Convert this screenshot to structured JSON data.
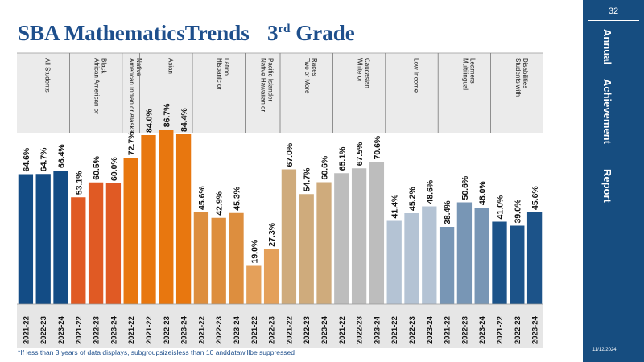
{
  "slide": {
    "title_main": "SBA MathematicsTrends",
    "title_grade_num": "3",
    "title_grade_sup": "rd",
    "title_grade_word": "Grade",
    "footnote": "*If less than 3 years of data displays, subgroupsizeisless than 10 anddatawillbe suppressed"
  },
  "sidebar": {
    "page_number": "32",
    "words": [
      "Annual",
      "Achievement",
      "Report"
    ],
    "date": "11/12/2024"
  },
  "chart_data": {
    "type": "bar",
    "ylim": [
      0,
      100
    ],
    "groups": [
      {
        "name": "All Students",
        "color": "#134c85",
        "bars": [
          {
            "year": "2021-22",
            "value": 64.6
          },
          {
            "year": "2022-23",
            "value": 64.7
          },
          {
            "year": "2023-24",
            "value": 66.4
          }
        ]
      },
      {
        "name": "African American or Black",
        "color": "#e05a24",
        "bars": [
          {
            "year": "2021-22",
            "value": 53.1
          },
          {
            "year": "2022-23",
            "value": 60.5
          },
          {
            "year": "2023-24",
            "value": 60.0
          }
        ]
      },
      {
        "name": "American Indian or Alaska Native",
        "color": "#e8770f",
        "bars": [
          {
            "year": "2021-22",
            "value": 72.7
          }
        ]
      },
      {
        "name": "Asian",
        "color": "#e8770f",
        "bars": [
          {
            "year": "2021-22",
            "value": 84.0
          },
          {
            "year": "2022-23",
            "value": 86.7
          },
          {
            "year": "2023-24",
            "value": 84.4
          }
        ]
      },
      {
        "name": "Hispanic or Latino",
        "color": "#dd8e3e",
        "bars": [
          {
            "year": "2021-22",
            "value": 45.6
          },
          {
            "year": "2022-23",
            "value": 42.9
          },
          {
            "year": "2023-24",
            "value": 45.3
          }
        ]
      },
      {
        "name": "Native Hawaiian or Pacific Islander",
        "color": "#e4a05a",
        "bars": [
          {
            "year": "2021-22",
            "value": 19.0
          },
          {
            "year": "2022-23",
            "value": 27.3
          }
        ]
      },
      {
        "name": "Two or More Races",
        "color": "#cfab7c",
        "bars": [
          {
            "year": "2021-22",
            "value": 67.0
          },
          {
            "year": "2022-23",
            "value": 54.7
          },
          {
            "year": "2023-24",
            "value": 60.6
          }
        ]
      },
      {
        "name": "White or Caucasian",
        "color": "#bdbdbd",
        "bars": [
          {
            "year": "2021-22",
            "value": 65.1
          },
          {
            "year": "2022-23",
            "value": 67.5
          },
          {
            "year": "2023-24",
            "value": 70.6
          }
        ]
      },
      {
        "name": "Low Income",
        "color": "#b4c3d4",
        "bars": [
          {
            "year": "2021-22",
            "value": 41.4
          },
          {
            "year": "2022-23",
            "value": 45.2
          },
          {
            "year": "2023-24",
            "value": 48.6
          }
        ]
      },
      {
        "name": "Multilingual Learners",
        "color": "#7896b5",
        "bars": [
          {
            "year": "2021-22",
            "value": 38.4
          },
          {
            "year": "2022-23",
            "value": 50.6
          },
          {
            "year": "2023-24",
            "value": 48.0
          }
        ]
      },
      {
        "name": "Students with Disabilities",
        "color": "#1c5389",
        "bars": [
          {
            "year": "2021-22",
            "value": 41.0
          },
          {
            "year": "2022-23",
            "value": 39.0
          },
          {
            "year": "2023-24",
            "value": 45.6
          }
        ]
      }
    ]
  }
}
